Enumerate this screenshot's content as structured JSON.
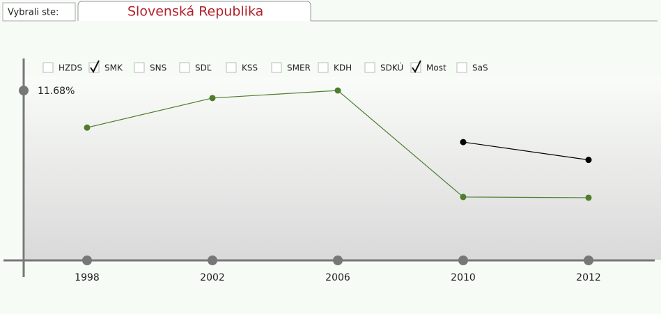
{
  "header": {
    "label": "Vybrali ste:",
    "tab": "Slovenská Republika"
  },
  "chart_data": {
    "type": "line",
    "legend": [
      {
        "name": "HZDS",
        "checked": false
      },
      {
        "name": "SMK",
        "checked": true
      },
      {
        "name": "SNS",
        "checked": false
      },
      {
        "name": "SDĽ",
        "checked": false
      },
      {
        "name": "KSS",
        "checked": false
      },
      {
        "name": "SMER",
        "checked": false
      },
      {
        "name": "KDH",
        "checked": false
      },
      {
        "name": "SDKÚ",
        "checked": false
      },
      {
        "name": "Most",
        "checked": true
      },
      {
        "name": "SaS",
        "checked": false
      }
    ],
    "categories": [
      "1998",
      "2002",
      "2006",
      "2010",
      "2012"
    ],
    "series": [
      {
        "color": "#4e7d2c",
        "values": [
          9.12,
          11.16,
          11.68,
          4.33,
          4.28
        ]
      },
      {
        "color": "#000000",
        "values": [
          null,
          null,
          null,
          8.12,
          6.89
        ]
      }
    ],
    "ylim": [
      0,
      11.68
    ],
    "yticks": [
      {
        "value": 11.68,
        "label": "11.68%"
      }
    ]
  }
}
